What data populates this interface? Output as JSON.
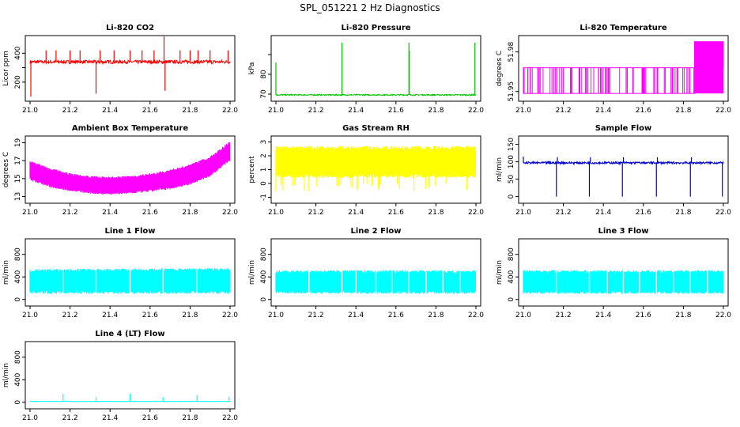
{
  "figure_title": "SPL_051221  2 Hz Diagnostics",
  "chart_data": [
    {
      "id": "co2",
      "type": "line",
      "title": "Li-820 CO2",
      "ylabel": "Licor ppm",
      "color": "#ff0000",
      "xlim": [
        21.0,
        22.0
      ],
      "ylim": [
        90,
        500
      ],
      "yticks": [
        200,
        300,
        400
      ],
      "ytick_labels": [
        "200",
        "",
        "400"
      ],
      "xticks": [
        21.0,
        21.2,
        21.4,
        21.6,
        21.8,
        22.0
      ],
      "xtick_labels": [
        "21.0",
        "21.2",
        "21.4",
        "21.6",
        "21.8",
        "22.0"
      ],
      "baseline": 340,
      "noise": 12,
      "spikes": [
        [
          21.004,
          100
        ],
        [
          21.08,
          420
        ],
        [
          21.13,
          420
        ],
        [
          21.2,
          420
        ],
        [
          21.25,
          420
        ],
        [
          21.33,
          120
        ],
        [
          21.35,
          420
        ],
        [
          21.42,
          420
        ],
        [
          21.5,
          420
        ],
        [
          21.56,
          420
        ],
        [
          21.62,
          420
        ],
        [
          21.67,
          520
        ],
        [
          21.675,
          140
        ],
        [
          21.75,
          420
        ],
        [
          21.8,
          420
        ],
        [
          21.84,
          420
        ],
        [
          21.9,
          420
        ],
        [
          21.99,
          420
        ]
      ]
    },
    {
      "id": "pressure",
      "type": "line",
      "title": "Li-820 Pressure",
      "ylabel": "kPa",
      "color": "#00c000",
      "xlim": [
        21.0,
        22.0
      ],
      "ylim": [
        68,
        98
      ],
      "yticks": [
        70,
        80,
        90
      ],
      "ytick_labels": [
        "70",
        "80",
        ""
      ],
      "xticks": [
        21.0,
        21.2,
        21.4,
        21.6,
        21.8,
        22.0
      ],
      "xtick_labels": [
        "21.0",
        "21.2",
        "21.4",
        "21.6",
        "21.8",
        "22.0"
      ],
      "baseline": 69.6,
      "noise": 0.3,
      "spikes": [
        [
          21.0,
          86
        ],
        [
          21.33,
          96
        ],
        [
          21.665,
          96
        ],
        [
          21.667,
          92
        ],
        [
          21.995,
          96
        ]
      ]
    },
    {
      "id": "licor_temp",
      "type": "line",
      "title": "Li-820 Temperature",
      "ylabel": "degrees C",
      "color": "#ff00ff",
      "xlim": [
        21.0,
        22.0
      ],
      "ylim": [
        51.945,
        51.99
      ],
      "yticks": [
        51.95,
        51.98
      ],
      "ytick_labels": [
        "51.95",
        "51.98"
      ],
      "xticks": [
        21.0,
        21.2,
        21.4,
        21.6,
        21.8,
        22.0
      ],
      "xtick_labels": [
        "21.0",
        "21.2",
        "21.4",
        "21.6",
        "21.8",
        "22.0"
      ],
      "low": 51.9485,
      "mid": 51.968,
      "high": 51.988,
      "x_high_start": 21.855
    },
    {
      "id": "box_temp",
      "type": "band",
      "title": "Ambient Box Temperature",
      "ylabel": "degrees C",
      "color": "#ff00ff",
      "xlim": [
        21.0,
        22.0
      ],
      "ylim": [
        12.6,
        19.4
      ],
      "yticks": [
        13,
        15,
        17,
        19
      ],
      "ytick_labels": [
        "13",
        "15",
        "17",
        "19"
      ],
      "xticks": [
        21.0,
        21.2,
        21.4,
        21.6,
        21.8,
        22.0
      ],
      "xtick_labels": [
        "21.0",
        "21.2",
        "21.4",
        "21.6",
        "21.8",
        "22.0"
      ],
      "upper": [
        [
          21.0,
          17.0
        ],
        [
          21.1,
          16.2
        ],
        [
          21.2,
          15.6
        ],
        [
          21.3,
          15.3
        ],
        [
          21.4,
          15.2
        ],
        [
          21.5,
          15.3
        ],
        [
          21.6,
          15.6
        ],
        [
          21.7,
          16.0
        ],
        [
          21.8,
          16.6
        ],
        [
          21.9,
          17.5
        ],
        [
          22.0,
          19.2
        ]
      ],
      "lower": [
        [
          21.0,
          14.8
        ],
        [
          21.1,
          14.0
        ],
        [
          21.2,
          13.6
        ],
        [
          21.3,
          13.3
        ],
        [
          21.4,
          13.2
        ],
        [
          21.5,
          13.3
        ],
        [
          21.6,
          13.5
        ],
        [
          21.7,
          13.8
        ],
        [
          21.8,
          14.3
        ],
        [
          21.9,
          15.2
        ],
        [
          22.0,
          17.0
        ]
      ]
    },
    {
      "id": "rh",
      "type": "band",
      "title": "Gas Stream RH",
      "ylabel": "percent",
      "color": "#ffff00",
      "xlim": [
        21.0,
        22.0
      ],
      "ylim": [
        -1.2,
        3.2
      ],
      "yticks": [
        -1,
        0,
        1,
        2,
        3
      ],
      "ytick_labels": [
        "-1",
        "0",
        "1",
        "2",
        "3"
      ],
      "xticks": [
        21.0,
        21.2,
        21.4,
        21.6,
        21.8,
        22.0
      ],
      "xtick_labels": [
        "21.0",
        "21.2",
        "21.4",
        "21.6",
        "21.8",
        "22.0"
      ],
      "upper": [
        [
          21.0,
          2.7
        ],
        [
          22.0,
          2.7
        ]
      ],
      "lower": [
        [
          21.0,
          0.4
        ],
        [
          22.0,
          0.4
        ]
      ],
      "dips_to": -0.6
    },
    {
      "id": "sample_flow",
      "type": "line",
      "title": "Sample Flow",
      "ylabel": "ml/min",
      "color": "#0000cc",
      "xlim": [
        21.0,
        22.0
      ],
      "ylim": [
        -10,
        165
      ],
      "yticks": [
        0,
        50,
        100,
        150
      ],
      "ytick_labels": [
        "0",
        "50",
        "100",
        "150"
      ],
      "xticks": [
        21.0,
        21.2,
        21.4,
        21.6,
        21.8,
        22.0
      ],
      "xtick_labels": [
        "21.0",
        "21.2",
        "21.4",
        "21.6",
        "21.8",
        "22.0"
      ],
      "baseline": 97,
      "noise": 3,
      "spikes": [
        [
          21.0,
          115
        ],
        [
          21.165,
          0
        ],
        [
          21.17,
          113
        ],
        [
          21.33,
          0
        ],
        [
          21.335,
          113
        ],
        [
          21.495,
          0
        ],
        [
          21.5,
          113
        ],
        [
          21.665,
          0
        ],
        [
          21.67,
          113
        ],
        [
          21.835,
          0
        ],
        [
          21.84,
          113
        ],
        [
          21.995,
          0
        ]
      ]
    },
    {
      "id": "line1",
      "type": "band",
      "title": "Line 1 Flow",
      "ylabel": "ml/min",
      "color": "#00ffff",
      "xlim": [
        21.0,
        22.0
      ],
      "ylim": [
        -60,
        1020
      ],
      "yticks": [
        0,
        400,
        800
      ],
      "ytick_labels": [
        "0",
        "400",
        "800"
      ],
      "xticks": [
        21.0,
        21.2,
        21.4,
        21.6,
        21.8,
        22.0
      ],
      "xtick_labels": [
        "21.0",
        "21.2",
        "21.4",
        "21.6",
        "21.8",
        "22.0"
      ],
      "upper": [
        [
          21.0,
          540
        ],
        [
          22.0,
          560
        ]
      ],
      "lower": [
        [
          21.0,
          100
        ],
        [
          22.0,
          100
        ]
      ],
      "gaps": [
        21.165,
        21.33,
        21.5,
        21.665,
        21.835
      ]
    },
    {
      "id": "line2",
      "type": "band",
      "title": "Line 2 Flow",
      "ylabel": "ml/min",
      "color": "#00ffff",
      "xlim": [
        21.0,
        22.0
      ],
      "ylim": [
        -60,
        1020
      ],
      "yticks": [
        0,
        400,
        800
      ],
      "ytick_labels": [
        "0",
        "400",
        "800"
      ],
      "xticks": [
        21.0,
        21.2,
        21.4,
        21.6,
        21.8,
        22.0
      ],
      "xtick_labels": [
        "21.0",
        "21.2",
        "21.4",
        "21.6",
        "21.8",
        "22.0"
      ],
      "upper": [
        [
          21.0,
          520
        ],
        [
          22.0,
          520
        ]
      ],
      "lower": [
        [
          21.0,
          100
        ],
        [
          22.0,
          100
        ]
      ],
      "gaps": [
        21.165,
        21.33,
        21.4,
        21.5,
        21.58,
        21.665,
        21.75,
        21.835,
        21.92
      ]
    },
    {
      "id": "line3",
      "type": "band",
      "title": "Line 3 Flow",
      "ylabel": "ml/min",
      "color": "#00ffff",
      "xlim": [
        21.0,
        22.0
      ],
      "ylim": [
        -60,
        1020
      ],
      "yticks": [
        0,
        400,
        800
      ],
      "ytick_labels": [
        "0",
        "400",
        "800"
      ],
      "xticks": [
        21.0,
        21.2,
        21.4,
        21.6,
        21.8,
        22.0
      ],
      "xtick_labels": [
        "21.0",
        "21.2",
        "21.4",
        "21.6",
        "21.8",
        "22.0"
      ],
      "upper": [
        [
          21.0,
          520
        ],
        [
          22.0,
          520
        ]
      ],
      "lower": [
        [
          21.0,
          100
        ],
        [
          22.0,
          100
        ]
      ],
      "gaps": [
        21.165,
        21.33,
        21.42,
        21.5,
        21.58,
        21.665,
        21.75,
        21.835,
        21.92
      ]
    },
    {
      "id": "line4",
      "type": "line",
      "title": "Line 4 (LT) Flow",
      "ylabel": "ml/min",
      "color": "#00ffff",
      "xlim": [
        21.0,
        22.0
      ],
      "ylim": [
        -60,
        1020
      ],
      "yticks": [
        0,
        400,
        800
      ],
      "ytick_labels": [
        "0",
        "400",
        "800"
      ],
      "xticks": [
        21.0,
        21.2,
        21.4,
        21.6,
        21.8,
        22.0
      ],
      "xtick_labels": [
        "21.0",
        "21.2",
        "21.4",
        "21.6",
        "21.8",
        "22.0"
      ],
      "baseline": 15,
      "noise": 3,
      "spikes": [
        [
          21.165,
          150
        ],
        [
          21.33,
          90
        ],
        [
          21.5,
          150
        ],
        [
          21.665,
          90
        ],
        [
          21.835,
          130
        ],
        [
          21.995,
          100
        ]
      ]
    }
  ]
}
